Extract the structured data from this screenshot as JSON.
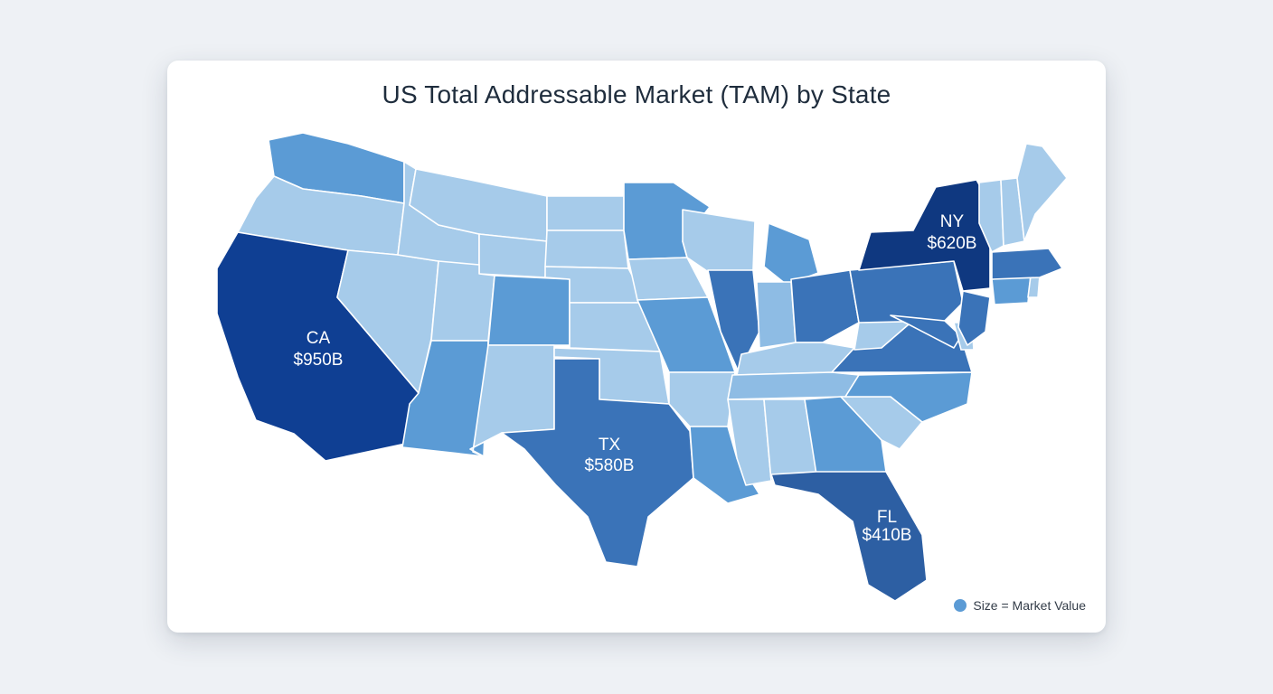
{
  "title": "US Total Addressable Market (TAM) by State",
  "legend": {
    "label": "Size = Market Value",
    "color": "#5b9bd5"
  },
  "colors": {
    "very_light": "#a6cbea",
    "light": "#8ebce4",
    "medium": "#5b9bd5",
    "strong": "#3a73b8",
    "dark": "#2d5fa3",
    "darker": "#0f3f93",
    "darkest": "#0f3880",
    "border": "#ffffff"
  },
  "highlighted_states": [
    {
      "code": "CA",
      "value": "$950B"
    },
    {
      "code": "NY",
      "value": "$620B"
    },
    {
      "code": "TX",
      "value": "$580B"
    },
    {
      "code": "FL",
      "value": "$410B"
    }
  ]
}
